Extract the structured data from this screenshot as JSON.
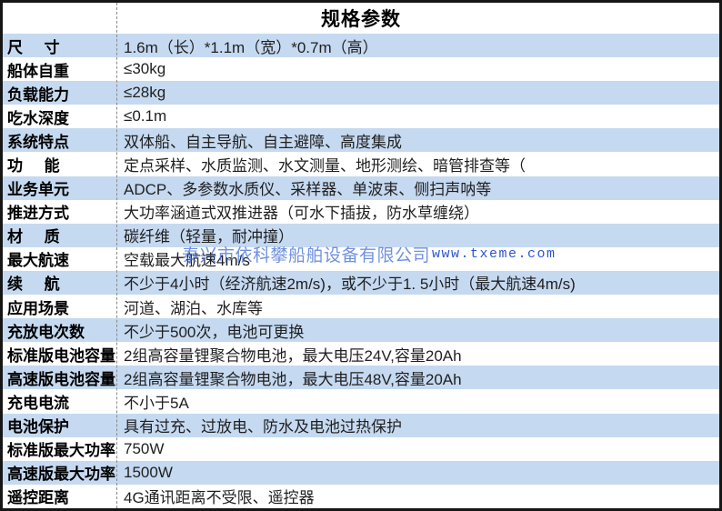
{
  "table": {
    "title": "规格参数",
    "rows": [
      {
        "label": "尺     寸",
        "value": "1.6m（长）*1.1m（宽）*0.7m（高）"
      },
      {
        "label": "船体自重",
        "value": "≤30kg"
      },
      {
        "label": "负载能力",
        "value": "≤28kg"
      },
      {
        "label": "吃水深度",
        "value": "≤0.1m"
      },
      {
        "label": "系统特点",
        "value": "双体船、自主导航、自主避障、高度集成"
      },
      {
        "label": "功     能",
        "value": "定点采样、水质监测、水文测量、地形测绘、暗管排查等（"
      },
      {
        "label": "业务单元",
        "value": "ADCP、多参数水质仪、采样器、单波束、侧扫声呐等"
      },
      {
        "label": "推进方式",
        "value": "大功率涵道式双推进器（可水下插拔，防水草缠绕）"
      },
      {
        "label": "材     质",
        "value": "碳纤维（轻量，耐冲撞）"
      },
      {
        "label": "最大航速",
        "value": "空载最大航速4m/s"
      },
      {
        "label": "续     航",
        "value": "不少于4小时（经济航速2m/s)，或不少于1. 5小时（最大航速4m/s)"
      },
      {
        "label": "应用场景",
        "value": "河道、湖泊、水库等"
      },
      {
        "label": "充放电次数",
        "value": "不少于500次，电池可更换"
      },
      {
        "label": "标准版电池容量",
        "value": "2组高容量锂聚合物电池，最大电压24V,容量20Ah"
      },
      {
        "label": "高速版电池容量",
        "value": "2组高容量锂聚合物电池，最大电压48V,容量20Ah"
      },
      {
        "label": "充电电流",
        "value": "不小于5A"
      },
      {
        "label": "电池保护",
        "value": "具有过充、过放电、防水及电池过热保护"
      },
      {
        "label": "标准版最大功率",
        "value": "750W"
      },
      {
        "label": "高速版最大功率",
        "value": "1500W"
      },
      {
        "label": "遥控距离",
        "value": "4G通讯距离不受限、遥控器"
      }
    ]
  },
  "watermark": {
    "company": "泰兴市依科攀船舶设备有限公司",
    "url": "www.txeme.com"
  },
  "colors": {
    "row_alt_blue": "#c5d9f0",
    "border_dark": "#161616",
    "divider_gray": "#8a8a8a",
    "watermark_blue": "#4d76d8",
    "watermark_url_blue": "#2d55d0"
  }
}
